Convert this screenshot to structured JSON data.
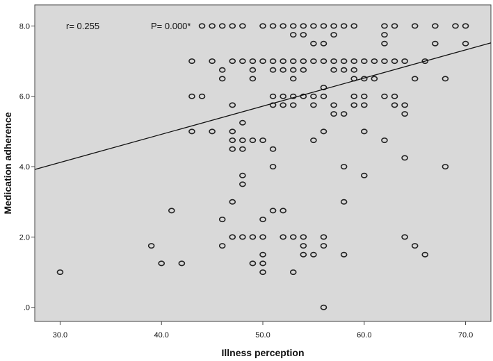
{
  "chart_data": {
    "type": "scatter",
    "title": "",
    "xlabel": "Illness perception",
    "ylabel": "Medication adherence",
    "xlim": [
      27.5,
      72.5
    ],
    "ylim": [
      -0.4,
      8.6
    ],
    "xticks": [
      30,
      40,
      50,
      60,
      70
    ],
    "xtick_labels": [
      "30.0",
      "40.0",
      "50.0",
      "60.0",
      "70.0"
    ],
    "yticks": [
      0,
      2,
      4,
      6,
      8
    ],
    "ytick_labels": [
      ".0",
      "2.0",
      "4.0",
      "6.0",
      "8.0"
    ],
    "annotations": {
      "r": "r= 0.255",
      "p": "P= 0.000*"
    },
    "grid": false,
    "legend": "none",
    "colors": {
      "plot_bg": "#d9d9d9",
      "marker_stroke": "#222222",
      "fit_line": "#111111"
    },
    "fit_line": {
      "x": [
        27.5,
        72.5
      ],
      "y": [
        3.92,
        7.52
      ]
    },
    "points": [
      [
        30,
        1.0
      ],
      [
        39,
        1.75
      ],
      [
        40,
        1.25
      ],
      [
        41,
        2.75
      ],
      [
        42,
        1.25
      ],
      [
        43,
        7.0
      ],
      [
        43,
        6.0
      ],
      [
        43,
        5.0
      ],
      [
        44,
        8.0
      ],
      [
        44,
        6.0
      ],
      [
        45,
        8.0
      ],
      [
        45,
        7.0
      ],
      [
        45,
        5.0
      ],
      [
        46,
        8.0
      ],
      [
        46,
        6.75
      ],
      [
        46,
        6.5
      ],
      [
        46,
        2.5
      ],
      [
        46,
        1.75
      ],
      [
        47,
        8.0
      ],
      [
        47,
        7.0
      ],
      [
        47,
        5.75
      ],
      [
        47,
        5.0
      ],
      [
        47,
        4.75
      ],
      [
        47,
        4.5
      ],
      [
        47,
        3.0
      ],
      [
        47,
        2.0
      ],
      [
        48,
        8.0
      ],
      [
        48,
        7.0
      ],
      [
        48,
        5.25
      ],
      [
        48,
        4.75
      ],
      [
        48,
        4.5
      ],
      [
        48,
        3.75
      ],
      [
        48,
        3.5
      ],
      [
        48,
        2.0
      ],
      [
        49,
        7.0
      ],
      [
        49,
        6.75
      ],
      [
        49,
        6.5
      ],
      [
        49,
        4.75
      ],
      [
        49,
        2.0
      ],
      [
        49,
        1.25
      ],
      [
        50,
        8.0
      ],
      [
        50,
        7.0
      ],
      [
        50,
        4.75
      ],
      [
        50,
        2.5
      ],
      [
        50,
        2.0
      ],
      [
        50,
        1.5
      ],
      [
        50,
        1.25
      ],
      [
        50,
        1.0
      ],
      [
        51,
        8.0
      ],
      [
        51,
        7.0
      ],
      [
        51,
        6.75
      ],
      [
        51,
        6.0
      ],
      [
        51,
        5.75
      ],
      [
        51,
        4.5
      ],
      [
        51,
        4.0
      ],
      [
        51,
        2.75
      ],
      [
        52,
        8.0
      ],
      [
        52,
        7.0
      ],
      [
        52,
        6.75
      ],
      [
        52,
        6.0
      ],
      [
        52,
        5.75
      ],
      [
        52,
        2.75
      ],
      [
        52,
        2.0
      ],
      [
        53,
        8.0
      ],
      [
        53,
        7.75
      ],
      [
        53,
        7.0
      ],
      [
        53,
        6.75
      ],
      [
        53,
        6.5
      ],
      [
        53,
        6.0
      ],
      [
        53,
        5.75
      ],
      [
        53,
        2.0
      ],
      [
        53,
        1.0
      ],
      [
        54,
        8.0
      ],
      [
        54,
        7.75
      ],
      [
        54,
        7.0
      ],
      [
        54,
        6.75
      ],
      [
        54,
        6.0
      ],
      [
        54,
        2.0
      ],
      [
        54,
        1.75
      ],
      [
        54,
        1.5
      ],
      [
        55,
        8.0
      ],
      [
        55,
        7.5
      ],
      [
        55,
        7.0
      ],
      [
        55,
        6.0
      ],
      [
        55,
        5.75
      ],
      [
        55,
        4.75
      ],
      [
        55,
        1.5
      ],
      [
        56,
        8.0
      ],
      [
        56,
        7.5
      ],
      [
        56,
        7.0
      ],
      [
        56,
        6.25
      ],
      [
        56,
        6.0
      ],
      [
        56,
        5.0
      ],
      [
        56,
        2.0
      ],
      [
        56,
        1.75
      ],
      [
        56,
        0.0
      ],
      [
        57,
        8.0
      ],
      [
        57,
        7.75
      ],
      [
        57,
        7.0
      ],
      [
        57,
        6.75
      ],
      [
        57,
        5.75
      ],
      [
        57,
        5.5
      ],
      [
        58,
        8.0
      ],
      [
        58,
        7.0
      ],
      [
        58,
        6.75
      ],
      [
        58,
        5.5
      ],
      [
        58,
        4.0
      ],
      [
        58,
        3.0
      ],
      [
        58,
        1.5
      ],
      [
        59,
        8.0
      ],
      [
        59,
        7.0
      ],
      [
        59,
        6.75
      ],
      [
        59,
        6.5
      ],
      [
        59,
        6.0
      ],
      [
        59,
        5.75
      ],
      [
        60,
        7.0
      ],
      [
        60,
        6.5
      ],
      [
        60,
        6.0
      ],
      [
        60,
        5.75
      ],
      [
        60,
        5.0
      ],
      [
        60,
        3.75
      ],
      [
        61,
        7.0
      ],
      [
        61,
        6.5
      ],
      [
        62,
        8.0
      ],
      [
        62,
        7.75
      ],
      [
        62,
        7.5
      ],
      [
        62,
        7.0
      ],
      [
        62,
        6.0
      ],
      [
        62,
        4.75
      ],
      [
        63,
        8.0
      ],
      [
        63,
        7.0
      ],
      [
        63,
        6.0
      ],
      [
        63,
        5.75
      ],
      [
        64,
        7.0
      ],
      [
        64,
        5.75
      ],
      [
        64,
        5.5
      ],
      [
        64,
        4.25
      ],
      [
        64,
        2.0
      ],
      [
        65,
        8.0
      ],
      [
        65,
        6.5
      ],
      [
        65,
        1.75
      ],
      [
        66,
        7.0
      ],
      [
        66,
        1.5
      ],
      [
        67,
        8.0
      ],
      [
        67,
        7.5
      ],
      [
        68,
        6.5
      ],
      [
        68,
        4.0
      ],
      [
        69,
        8.0
      ],
      [
        70,
        8.0
      ],
      [
        70,
        7.5
      ]
    ]
  }
}
